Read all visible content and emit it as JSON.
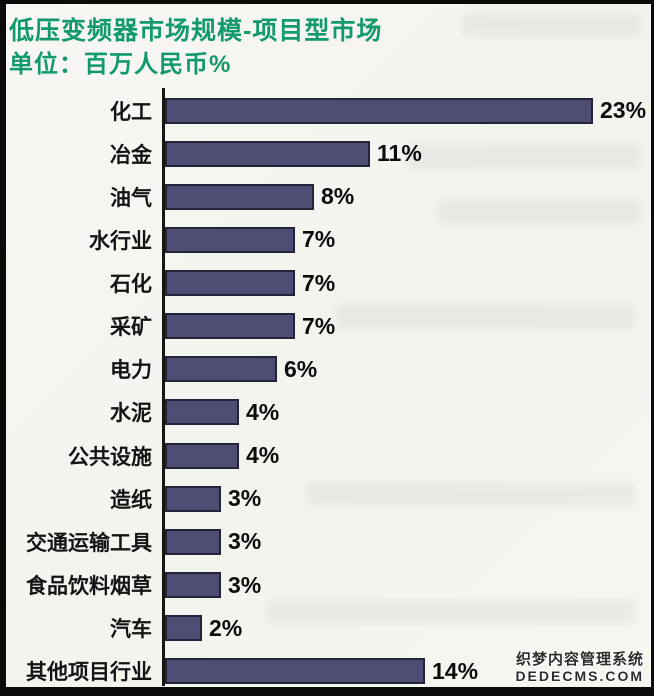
{
  "chart_data": {
    "type": "bar",
    "orientation": "horizontal",
    "title": "低压变频器市场规模-项目型市场",
    "unit_label": "单位：百万人民币%",
    "categories": [
      "化工",
      "冶金",
      "油气",
      "水行业",
      "石化",
      "采矿",
      "电力",
      "水泥",
      "公共设施",
      "造纸",
      "交通运输工具",
      "食品饮料烟草",
      "汽车",
      "其他项目行业"
    ],
    "values": [
      23,
      11,
      8,
      7,
      7,
      7,
      6,
      4,
      4,
      3,
      3,
      3,
      2,
      14
    ],
    "value_labels": [
      "23%",
      "11%",
      "8%",
      "7%",
      "7%",
      "7%",
      "6%",
      "4%",
      "4%",
      "3%",
      "3%",
      "3%",
      "2%",
      "14%"
    ],
    "xlabel": "",
    "ylabel": "",
    "xlim": [
      0,
      25
    ],
    "grid": false,
    "legend": "none",
    "bar_color": "#4e4e75",
    "bar_border_color": "#23233a",
    "title_color": "#129a6c",
    "label_color": "#141414"
  },
  "watermark": {
    "line1": "织梦内容管理系统",
    "line2": "DEDECMS.COM"
  }
}
